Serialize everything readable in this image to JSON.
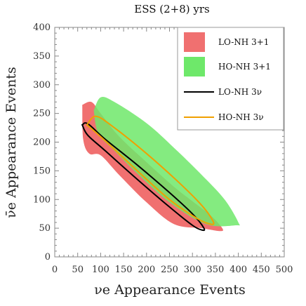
{
  "chart_data": {
    "type": "area",
    "title": "ESS (2+8) yrs",
    "xlabel": "νe Appearance Events",
    "ylabel": "ν̄e Appearance Events",
    "xlim": [
      0,
      500
    ],
    "ylim": [
      0,
      400
    ],
    "x_ticks": [
      0,
      50,
      100,
      150,
      200,
      250,
      300,
      350,
      400,
      450,
      500
    ],
    "y_ticks": [
      0,
      50,
      100,
      150,
      200,
      250,
      300,
      350,
      400
    ],
    "grid": false,
    "legend_position": "top-right",
    "series": [
      {
        "name": "LO-NH 3+1",
        "kind": "filled-region",
        "color": "#f07070",
        "x": [
          60,
          80,
          100,
          140,
          200,
          260,
          300,
          340,
          365,
          360,
          320,
          260,
          200,
          140,
          100,
          75,
          62,
          60
        ],
        "y": [
          265,
          270,
          250,
          210,
          165,
          122,
          97,
          72,
          50,
          45,
          50,
          57,
          95,
          143,
          177,
          180,
          205,
          265
        ]
      },
      {
        "name": "HO-NH 3+1",
        "kind": "filled-region",
        "color": "#6ee86a",
        "x": [
          85,
          100,
          130,
          200,
          260,
          320,
          370,
          400,
          395,
          330,
          250,
          180,
          130,
          95,
          85
        ],
        "y": [
          255,
          278,
          270,
          233,
          190,
          143,
          100,
          60,
          55,
          57,
          95,
          145,
          185,
          215,
          255
        ]
      },
      {
        "name": "LO-NH 3ν",
        "kind": "contour",
        "color": "#000000",
        "x": [
          60,
          72,
          110,
          180,
          250,
          300,
          325,
          320,
          300,
          250,
          180,
          110,
          72,
          60
        ],
        "y": [
          230,
          232,
          205,
          160,
          112,
          75,
          50,
          47,
          55,
          87,
          135,
          185,
          212,
          230
        ]
      },
      {
        "name": "HO-NH 3ν",
        "kind": "contour",
        "color": "#f0a000",
        "x": [
          70,
          90,
          130,
          200,
          270,
          320,
          345,
          340,
          310,
          250,
          180,
          120,
          85,
          70
        ],
        "y": [
          230,
          245,
          225,
          180,
          130,
          90,
          62,
          57,
          67,
          100,
          150,
          195,
          220,
          230
        ]
      }
    ]
  }
}
